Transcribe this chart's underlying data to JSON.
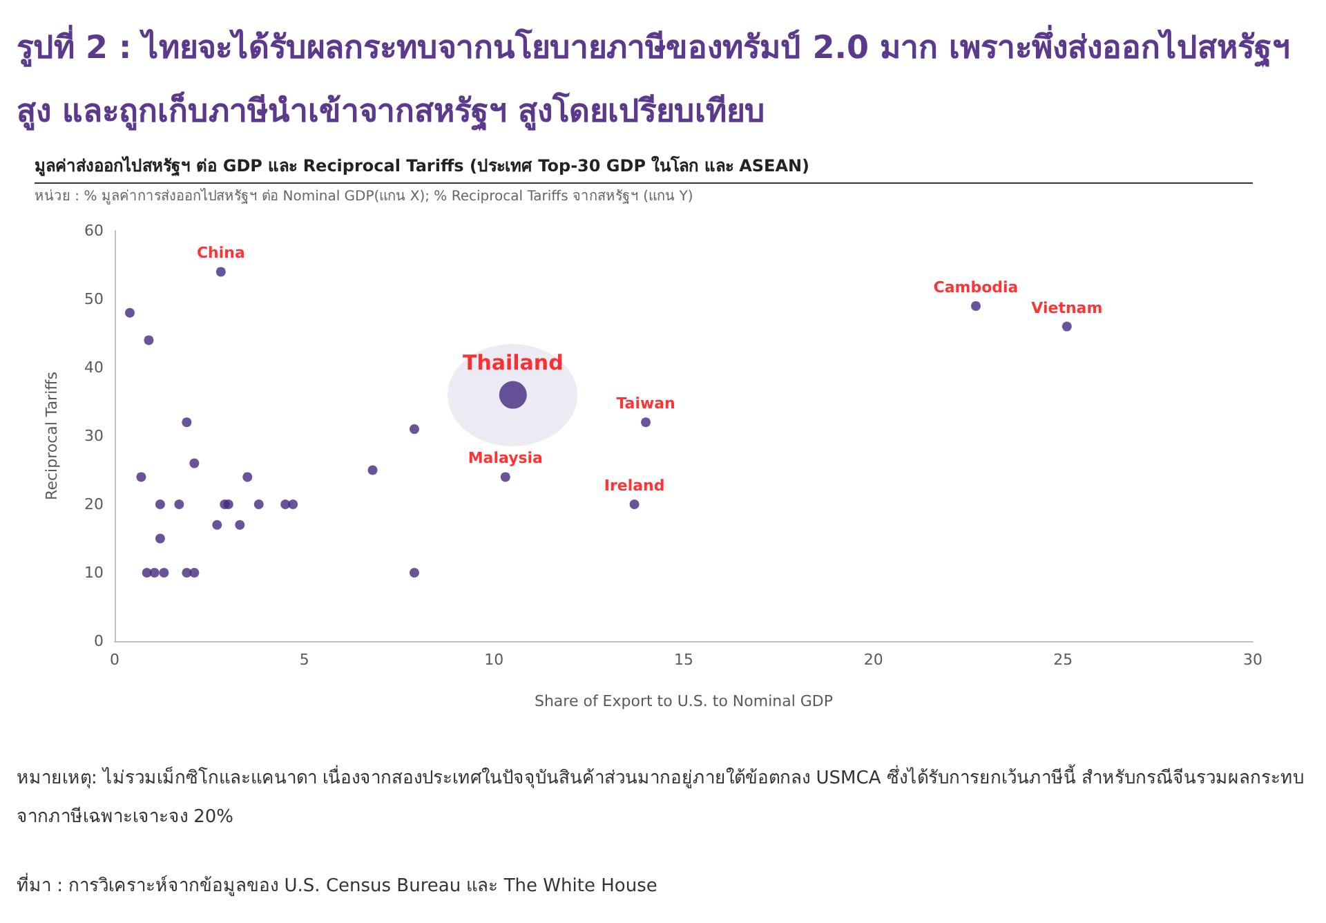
{
  "chart_data": {
    "type": "scatter",
    "title": "รูปที่ 2 : ไทยจะได้รับผลกระทบจากนโยบายภาษีของทรัมป์ 2.0 มาก เพราะพึ่งส่งออกไปสหรัฐฯ สูง และถูกเก็บภาษีนำเข้าจากสหรัฐฯ สูงโดยเปรียบเทียบ",
    "subtitle": "มูลค่าส่งออกไปสหรัฐฯ ต่อ GDP และ Reciprocal Tariffs (ประเทศ Top-30 GDP ในโลก และ ASEAN)",
    "xlabel": "Share of Export to U.S. to Nominal GDP",
    "ylabel": "Reciprocal Tariffs",
    "xlim": [
      0,
      30
    ],
    "xticks": [
      0,
      5,
      10,
      15,
      20,
      25,
      30
    ],
    "ylim": [
      0,
      60
    ],
    "yticks": [
      0,
      10,
      20,
      30,
      40,
      50,
      60
    ],
    "grid": false,
    "legend": false,
    "marker": "circle",
    "series": [
      {
        "color": "#43287f",
        "x": [
          0.4,
          0.9,
          2.8,
          1.9,
          0.7,
          2.1,
          1.2,
          1.7,
          2.9,
          3.0,
          3.8,
          4.5,
          4.7,
          3.5,
          1.2,
          2.7,
          3.3,
          0.85,
          1.05,
          1.3,
          1.9,
          2.1,
          6.8,
          7.9,
          7.9,
          14.0,
          10.3,
          13.7,
          22.7,
          25.1
        ],
        "values": [
          48,
          44,
          54,
          32,
          24,
          26,
          20,
          20,
          20,
          20,
          20,
          20,
          20,
          24,
          15,
          17,
          17,
          10,
          10,
          10,
          10,
          10,
          25,
          31,
          10,
          32,
          24,
          20,
          49,
          46
        ]
      },
      {
        "name": "Thailand",
        "color": "#43287f",
        "x": [
          10.5
        ],
        "values": [
          36
        ]
      }
    ],
    "annotations": [
      "หน่วย : % มูลค่าการส่งออกไปสหรัฐฯ ต่อ Nominal GDP(แกน X); % Reciprocal Tariffs จากสหรัฐฯ (แกน Y)",
      {
        "text": "China",
        "x": 2.8,
        "y": 54
      },
      {
        "text": "Taiwan",
        "x": 14.0,
        "y": 32
      },
      {
        "text": "Malaysia",
        "x": 10.3,
        "y": 24
      },
      {
        "text": "Ireland",
        "x": 13.7,
        "y": 20
      },
      {
        "text": "Cambodia",
        "x": 22.7,
        "y": 49
      },
      {
        "text": "Vietnam",
        "x": 25.1,
        "y": 46
      },
      "หมายเหตุ: ไม่รวมเม็กซิโกและแคนาดา เนื่องจากสองประเทศในปัจจุบันสินค้าส่วนมากอยู่ภายใต้ข้อตกลง USMCA ซึ่งได้รับการยกเว้นภาษีนี้ สำหรับกรณีจีนรวมผลกระทบจากภาษีเฉพาะเจาะจง 20%",
      "ที่มา : การวิเคราะห์จากข้อมูลของ U.S. Census Bureau และ The White House"
    ]
  }
}
